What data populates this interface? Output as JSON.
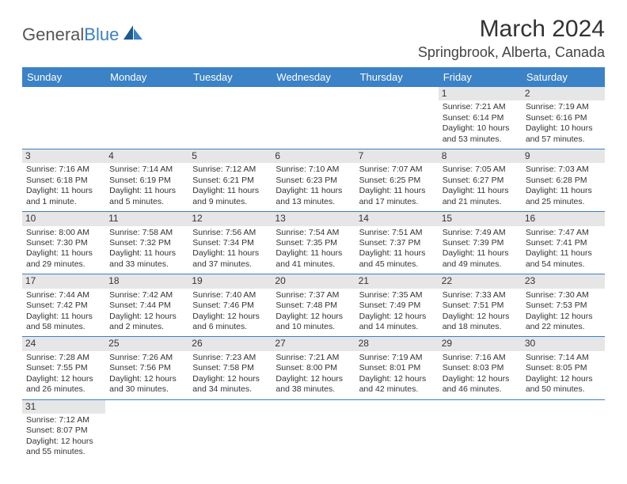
{
  "logo": {
    "text_a": "General",
    "text_b": "Blue"
  },
  "header": {
    "title": "March 2024",
    "location": "Springbrook, Alberta, Canada"
  },
  "colors": {
    "header_bg": "#3b82c7",
    "header_text": "#ffffff",
    "border": "#3b7fc4",
    "daynum_bg": "#e6e6e6",
    "text": "#333333"
  },
  "day_headers": [
    "Sunday",
    "Monday",
    "Tuesday",
    "Wednesday",
    "Thursday",
    "Friday",
    "Saturday"
  ],
  "weeks": [
    [
      {
        "empty": true
      },
      {
        "empty": true
      },
      {
        "empty": true
      },
      {
        "empty": true
      },
      {
        "empty": true
      },
      {
        "n": "1",
        "sr": "Sunrise: 7:21 AM",
        "ss": "Sunset: 6:14 PM",
        "d1": "Daylight: 10 hours",
        "d2": "and 53 minutes."
      },
      {
        "n": "2",
        "sr": "Sunrise: 7:19 AM",
        "ss": "Sunset: 6:16 PM",
        "d1": "Daylight: 10 hours",
        "d2": "and 57 minutes."
      }
    ],
    [
      {
        "n": "3",
        "sr": "Sunrise: 7:16 AM",
        "ss": "Sunset: 6:18 PM",
        "d1": "Daylight: 11 hours",
        "d2": "and 1 minute."
      },
      {
        "n": "4",
        "sr": "Sunrise: 7:14 AM",
        "ss": "Sunset: 6:19 PM",
        "d1": "Daylight: 11 hours",
        "d2": "and 5 minutes."
      },
      {
        "n": "5",
        "sr": "Sunrise: 7:12 AM",
        "ss": "Sunset: 6:21 PM",
        "d1": "Daylight: 11 hours",
        "d2": "and 9 minutes."
      },
      {
        "n": "6",
        "sr": "Sunrise: 7:10 AM",
        "ss": "Sunset: 6:23 PM",
        "d1": "Daylight: 11 hours",
        "d2": "and 13 minutes."
      },
      {
        "n": "7",
        "sr": "Sunrise: 7:07 AM",
        "ss": "Sunset: 6:25 PM",
        "d1": "Daylight: 11 hours",
        "d2": "and 17 minutes."
      },
      {
        "n": "8",
        "sr": "Sunrise: 7:05 AM",
        "ss": "Sunset: 6:27 PM",
        "d1": "Daylight: 11 hours",
        "d2": "and 21 minutes."
      },
      {
        "n": "9",
        "sr": "Sunrise: 7:03 AM",
        "ss": "Sunset: 6:28 PM",
        "d1": "Daylight: 11 hours",
        "d2": "and 25 minutes."
      }
    ],
    [
      {
        "n": "10",
        "sr": "Sunrise: 8:00 AM",
        "ss": "Sunset: 7:30 PM",
        "d1": "Daylight: 11 hours",
        "d2": "and 29 minutes."
      },
      {
        "n": "11",
        "sr": "Sunrise: 7:58 AM",
        "ss": "Sunset: 7:32 PM",
        "d1": "Daylight: 11 hours",
        "d2": "and 33 minutes."
      },
      {
        "n": "12",
        "sr": "Sunrise: 7:56 AM",
        "ss": "Sunset: 7:34 PM",
        "d1": "Daylight: 11 hours",
        "d2": "and 37 minutes."
      },
      {
        "n": "13",
        "sr": "Sunrise: 7:54 AM",
        "ss": "Sunset: 7:35 PM",
        "d1": "Daylight: 11 hours",
        "d2": "and 41 minutes."
      },
      {
        "n": "14",
        "sr": "Sunrise: 7:51 AM",
        "ss": "Sunset: 7:37 PM",
        "d1": "Daylight: 11 hours",
        "d2": "and 45 minutes."
      },
      {
        "n": "15",
        "sr": "Sunrise: 7:49 AM",
        "ss": "Sunset: 7:39 PM",
        "d1": "Daylight: 11 hours",
        "d2": "and 49 minutes."
      },
      {
        "n": "16",
        "sr": "Sunrise: 7:47 AM",
        "ss": "Sunset: 7:41 PM",
        "d1": "Daylight: 11 hours",
        "d2": "and 54 minutes."
      }
    ],
    [
      {
        "n": "17",
        "sr": "Sunrise: 7:44 AM",
        "ss": "Sunset: 7:42 PM",
        "d1": "Daylight: 11 hours",
        "d2": "and 58 minutes."
      },
      {
        "n": "18",
        "sr": "Sunrise: 7:42 AM",
        "ss": "Sunset: 7:44 PM",
        "d1": "Daylight: 12 hours",
        "d2": "and 2 minutes."
      },
      {
        "n": "19",
        "sr": "Sunrise: 7:40 AM",
        "ss": "Sunset: 7:46 PM",
        "d1": "Daylight: 12 hours",
        "d2": "and 6 minutes."
      },
      {
        "n": "20",
        "sr": "Sunrise: 7:37 AM",
        "ss": "Sunset: 7:48 PM",
        "d1": "Daylight: 12 hours",
        "d2": "and 10 minutes."
      },
      {
        "n": "21",
        "sr": "Sunrise: 7:35 AM",
        "ss": "Sunset: 7:49 PM",
        "d1": "Daylight: 12 hours",
        "d2": "and 14 minutes."
      },
      {
        "n": "22",
        "sr": "Sunrise: 7:33 AM",
        "ss": "Sunset: 7:51 PM",
        "d1": "Daylight: 12 hours",
        "d2": "and 18 minutes."
      },
      {
        "n": "23",
        "sr": "Sunrise: 7:30 AM",
        "ss": "Sunset: 7:53 PM",
        "d1": "Daylight: 12 hours",
        "d2": "and 22 minutes."
      }
    ],
    [
      {
        "n": "24",
        "sr": "Sunrise: 7:28 AM",
        "ss": "Sunset: 7:55 PM",
        "d1": "Daylight: 12 hours",
        "d2": "and 26 minutes."
      },
      {
        "n": "25",
        "sr": "Sunrise: 7:26 AM",
        "ss": "Sunset: 7:56 PM",
        "d1": "Daylight: 12 hours",
        "d2": "and 30 minutes."
      },
      {
        "n": "26",
        "sr": "Sunrise: 7:23 AM",
        "ss": "Sunset: 7:58 PM",
        "d1": "Daylight: 12 hours",
        "d2": "and 34 minutes."
      },
      {
        "n": "27",
        "sr": "Sunrise: 7:21 AM",
        "ss": "Sunset: 8:00 PM",
        "d1": "Daylight: 12 hours",
        "d2": "and 38 minutes."
      },
      {
        "n": "28",
        "sr": "Sunrise: 7:19 AM",
        "ss": "Sunset: 8:01 PM",
        "d1": "Daylight: 12 hours",
        "d2": "and 42 minutes."
      },
      {
        "n": "29",
        "sr": "Sunrise: 7:16 AM",
        "ss": "Sunset: 8:03 PM",
        "d1": "Daylight: 12 hours",
        "d2": "and 46 minutes."
      },
      {
        "n": "30",
        "sr": "Sunrise: 7:14 AM",
        "ss": "Sunset: 8:05 PM",
        "d1": "Daylight: 12 hours",
        "d2": "and 50 minutes."
      }
    ],
    [
      {
        "n": "31",
        "sr": "Sunrise: 7:12 AM",
        "ss": "Sunset: 8:07 PM",
        "d1": "Daylight: 12 hours",
        "d2": "and 55 minutes."
      },
      {
        "empty": true
      },
      {
        "empty": true
      },
      {
        "empty": true
      },
      {
        "empty": true
      },
      {
        "empty": true
      },
      {
        "empty": true
      }
    ]
  ]
}
